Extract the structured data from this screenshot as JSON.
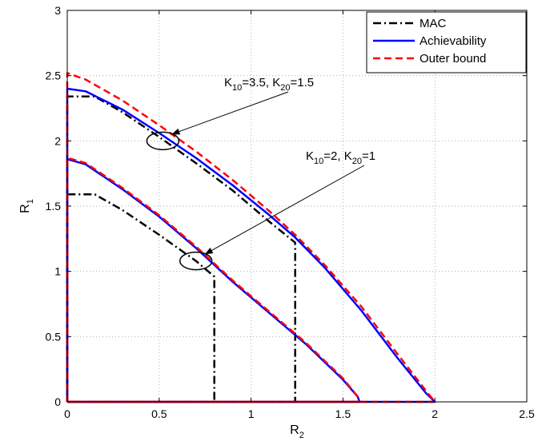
{
  "chart_data": {
    "type": "line",
    "title": "",
    "xlabel": "R_2",
    "ylabel": "R_1",
    "xlim": [
      0,
      2.5
    ],
    "ylim": [
      0,
      3
    ],
    "xticks": [
      "0",
      "0.5",
      "1",
      "1.5",
      "2",
      "2.5"
    ],
    "yticks": [
      "0",
      "0.5",
      "1",
      "1.5",
      "2",
      "2.5",
      "3"
    ],
    "grid": true,
    "legend_position": "top-right",
    "legend": [
      {
        "label": "MAC",
        "color": "#000000",
        "style": "dashdot"
      },
      {
        "label": "Achievability",
        "color": "#0000ff",
        "style": "solid"
      },
      {
        "label": "Outer bound",
        "color": "#ff0000",
        "style": "dashed"
      }
    ],
    "annotations": [
      {
        "text": "K",
        "sub1": "10",
        "mid": "=3.5, K",
        "sub2": "20",
        "end": "=1.5",
        "target": [
          0.52,
          2.0
        ]
      },
      {
        "text": "K",
        "sub1": "10",
        "mid": "=2, K",
        "sub2": "20",
        "end": "=1",
        "target": [
          0.7,
          1.08
        ]
      }
    ],
    "series": [
      {
        "name": "MAC",
        "group": "K10=3.5, K20=1.5",
        "color": "#000000",
        "style": "dashdot",
        "x": [
          0,
          0,
          0.15,
          0.3,
          0.5,
          0.7,
          0.9,
          1.1,
          1.24,
          1.24,
          0
        ],
        "y": [
          0,
          2.34,
          2.34,
          2.22,
          2.03,
          1.83,
          1.62,
          1.38,
          1.22,
          0,
          0
        ]
      },
      {
        "name": "MAC",
        "group": "K10=2, K20=1",
        "color": "#000000",
        "style": "dashdot",
        "x": [
          0,
          0,
          0.15,
          0.3,
          0.5,
          0.7,
          0.8,
          0.8,
          0
        ],
        "y": [
          0,
          1.59,
          1.59,
          1.47,
          1.28,
          1.08,
          0.96,
          0,
          0
        ]
      },
      {
        "name": "Achievability",
        "group": "K10=3.5, K20=1.5",
        "color": "#0000ff",
        "style": "solid",
        "x": [
          0,
          0,
          0.1,
          0.3,
          0.5,
          0.7,
          0.9,
          1.1,
          1.24,
          1.4,
          1.6,
          1.8,
          1.95,
          2.0,
          0
        ],
        "y": [
          0,
          2.4,
          2.38,
          2.24,
          2.06,
          1.87,
          1.66,
          1.43,
          1.26,
          1.03,
          0.7,
          0.33,
          0.07,
          0,
          0
        ]
      },
      {
        "name": "Achievability",
        "group": "K10=2, K20=1",
        "color": "#0000ff",
        "style": "solid",
        "x": [
          0,
          0,
          0.1,
          0.3,
          0.5,
          0.7,
          0.9,
          1.1,
          1.3,
          1.5,
          1.58,
          1.59,
          0
        ],
        "y": [
          0,
          1.86,
          1.82,
          1.63,
          1.42,
          1.18,
          0.92,
          0.68,
          0.44,
          0.17,
          0.04,
          0,
          0
        ]
      },
      {
        "name": "Outer bound",
        "group": "K10=3.5, K20=1.5",
        "color": "#ff0000",
        "style": "dashed",
        "x": [
          0,
          0,
          0.1,
          0.3,
          0.5,
          0.7,
          0.9,
          1.1,
          1.24,
          1.4,
          1.6,
          1.8,
          1.96,
          2.0,
          0
        ],
        "y": [
          0,
          2.52,
          2.47,
          2.31,
          2.12,
          1.92,
          1.7,
          1.46,
          1.28,
          1.05,
          0.73,
          0.36,
          0.07,
          0,
          0
        ]
      },
      {
        "name": "Outer bound",
        "group": "K10=2, K20=1",
        "color": "#ff0000",
        "style": "dashed",
        "x": [
          0,
          0,
          0.1,
          0.3,
          0.5,
          0.7,
          0.9,
          1.1,
          1.3,
          1.5,
          1.58,
          1.59,
          0
        ],
        "y": [
          0,
          1.87,
          1.83,
          1.64,
          1.43,
          1.19,
          0.93,
          0.69,
          0.45,
          0.18,
          0.04,
          0,
          0
        ]
      }
    ]
  }
}
